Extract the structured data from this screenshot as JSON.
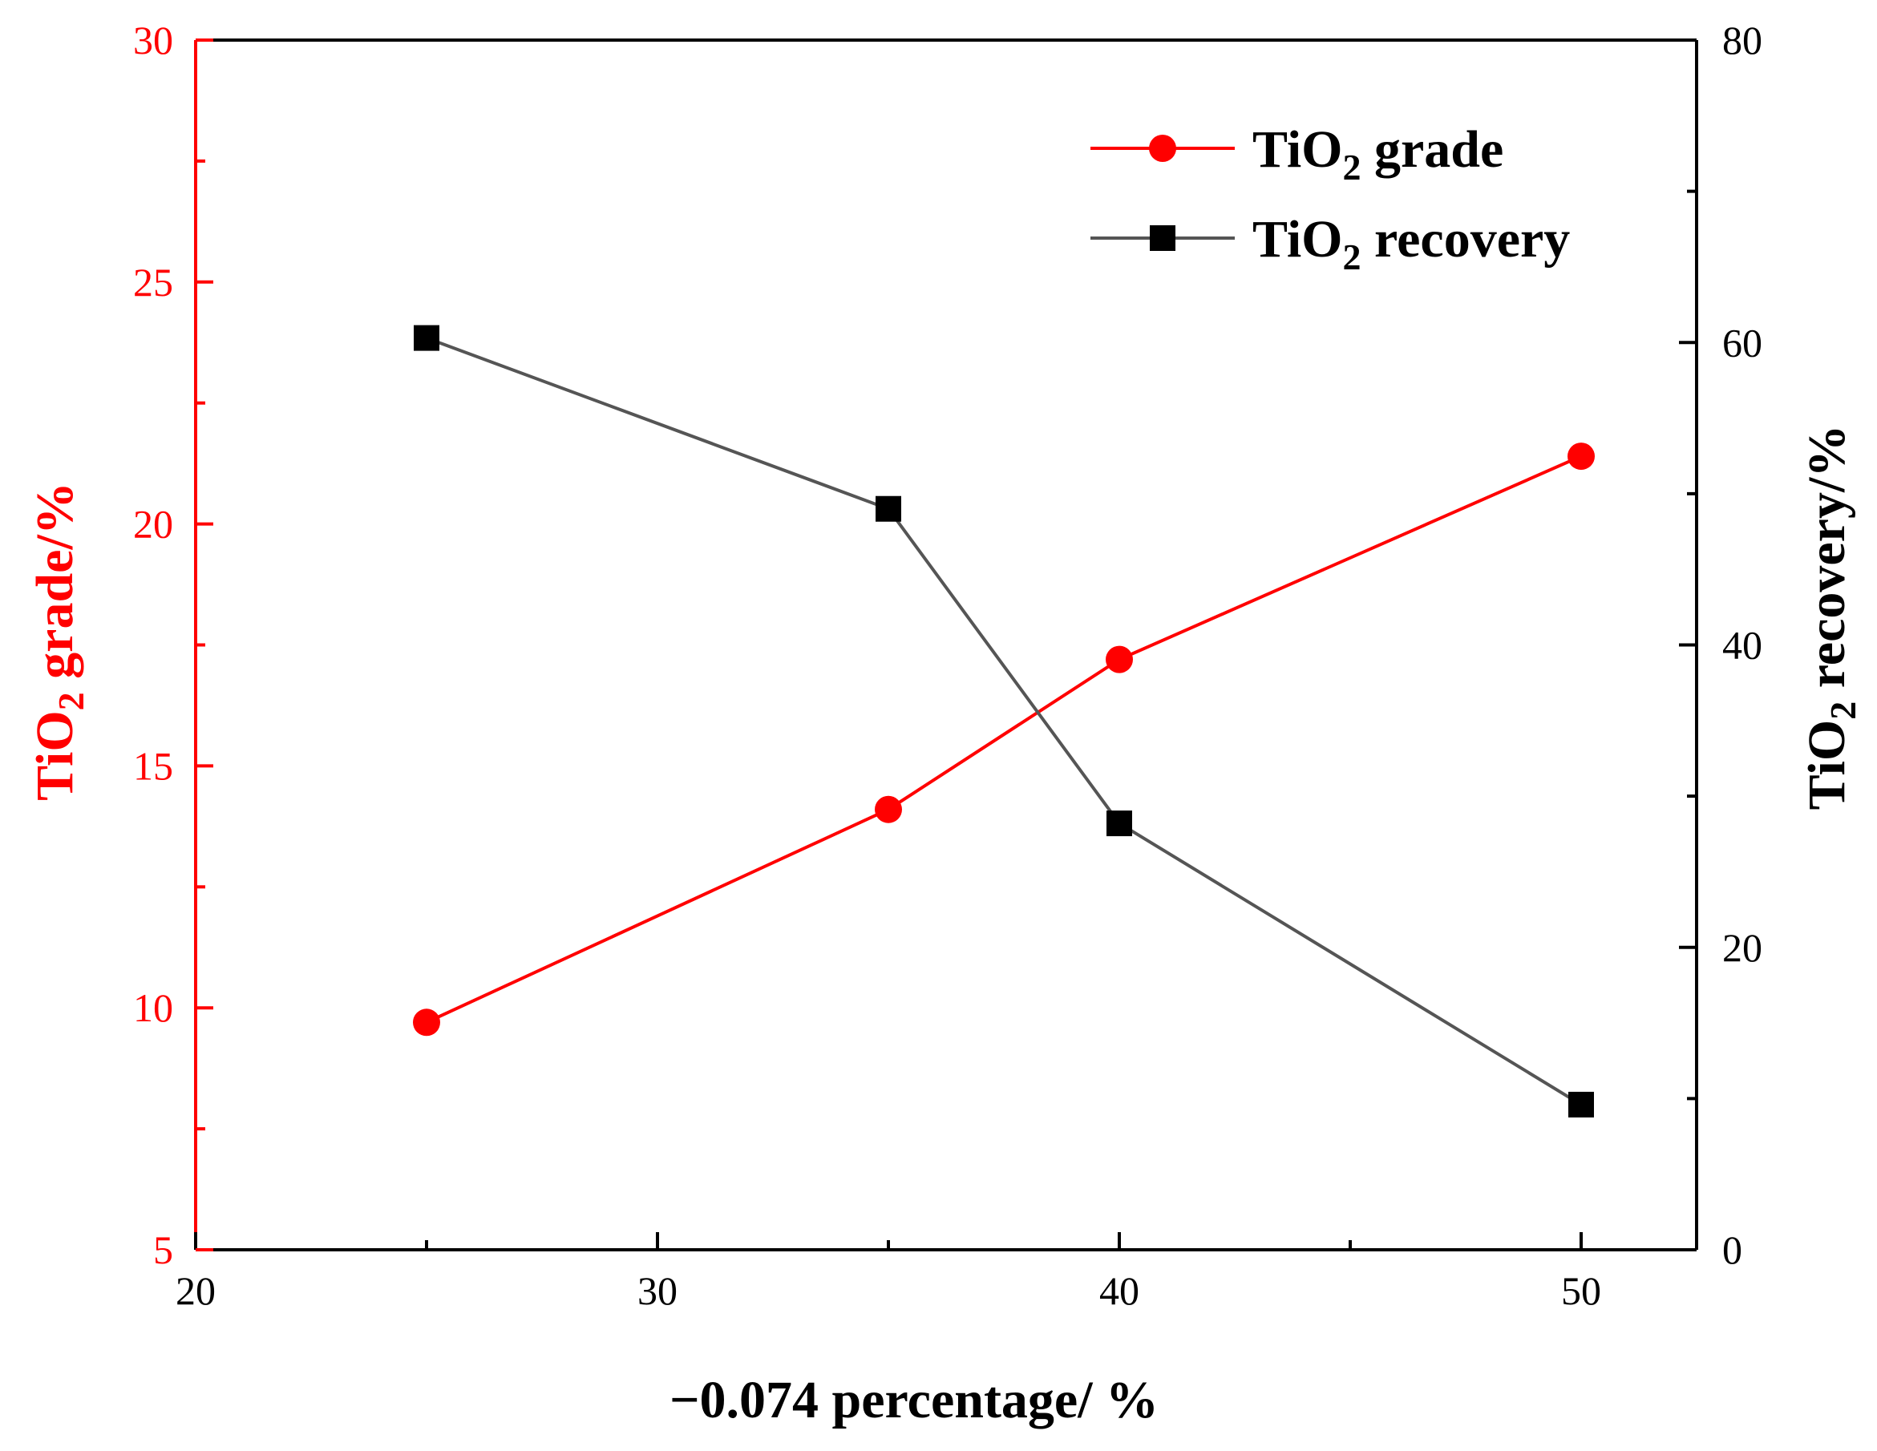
{
  "chart_data": {
    "type": "line",
    "x": [
      25,
      35,
      40,
      50
    ],
    "xlabel": "−0.074 percentage/ %",
    "xlim": [
      20,
      52.5
    ],
    "xticks": [
      20,
      30,
      40,
      50
    ],
    "xticks_minor": [
      25,
      35,
      45
    ],
    "y_left": {
      "label_prefix": "TiO",
      "label_subscript": "2",
      "label_suffix": " grade/%",
      "lim": [
        5,
        30
      ],
      "ticks": [
        5,
        10,
        15,
        20,
        25,
        30
      ],
      "color": "#ff0000"
    },
    "y_right": {
      "label_prefix": "TiO",
      "label_subscript": "2",
      "label_suffix": " recovery/%",
      "lim": [
        0,
        80
      ],
      "ticks": [
        0,
        20,
        40,
        60,
        80
      ],
      "color": "#000000"
    },
    "series": [
      {
        "name": "TiO2 grade",
        "legend_prefix": "TiO",
        "legend_subscript": "2",
        "legend_suffix": " grade",
        "axis": "left",
        "marker": "circle",
        "color": "#ff0000",
        "values": [
          9.7,
          14.1,
          17.2,
          21.4
        ]
      },
      {
        "name": "TiO2 recovery",
        "legend_prefix": "TiO",
        "legend_subscript": "2",
        "legend_suffix": " recovery",
        "axis": "right",
        "marker": "square",
        "color": "#555555",
        "marker_color": "#000000",
        "values": [
          60.3,
          49.0,
          28.2,
          9.6
        ]
      }
    ],
    "legend": "top-right"
  }
}
